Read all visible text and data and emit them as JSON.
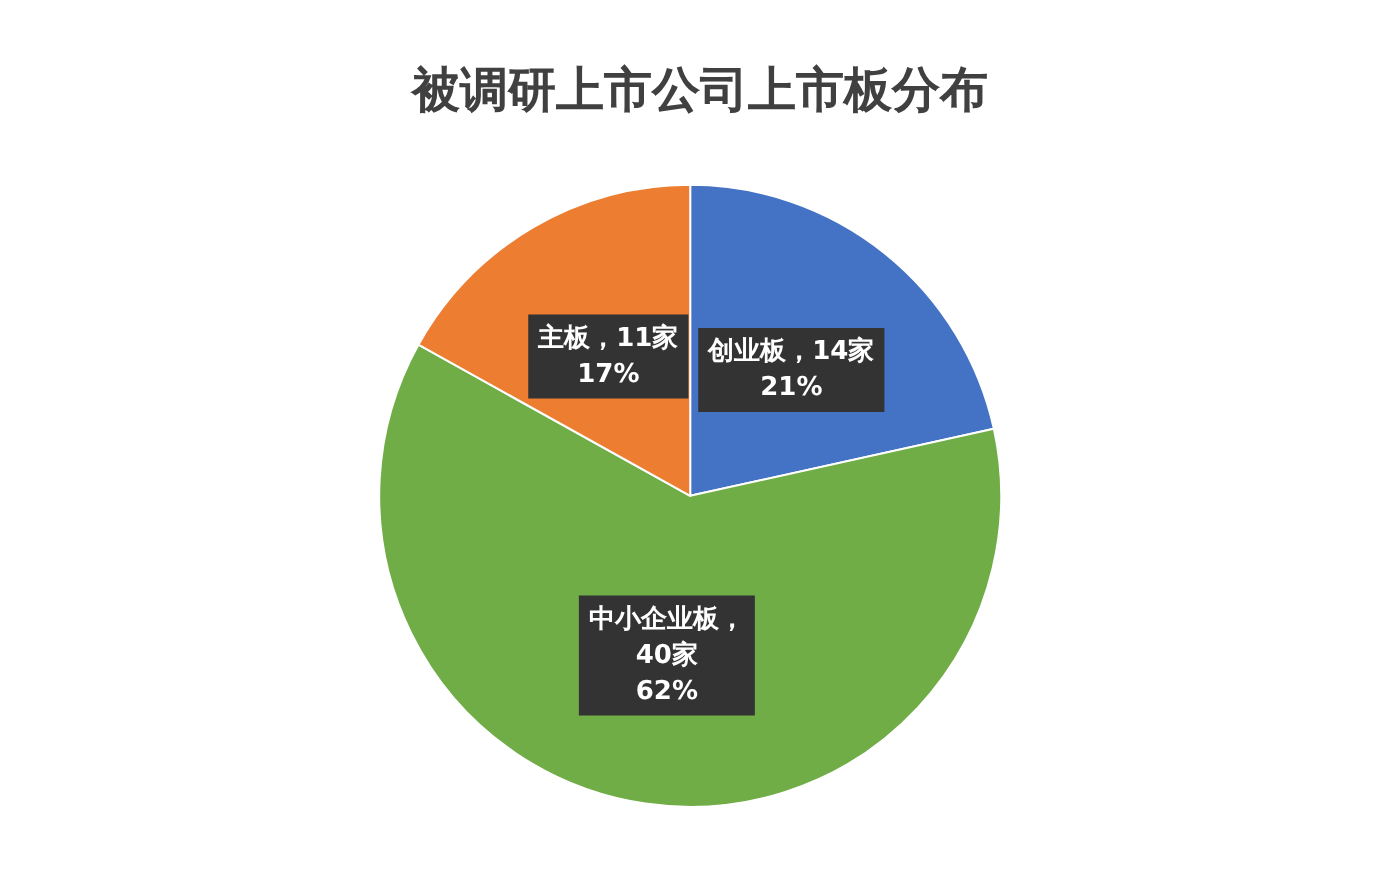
{
  "chart_data": {
    "type": "pie",
    "title": "被调研上市公司上市板分布",
    "categories": [
      "创业板",
      "中小企业板",
      "主板"
    ],
    "values": [
      14,
      40,
      11
    ],
    "colors": [
      "#4472c4",
      "#70ad47",
      "#ed7d31"
    ],
    "value_labels": [
      "，14家\n21%",
      "，\n40家\n62%",
      "，11家\n17%"
    ],
    "legend": false
  }
}
